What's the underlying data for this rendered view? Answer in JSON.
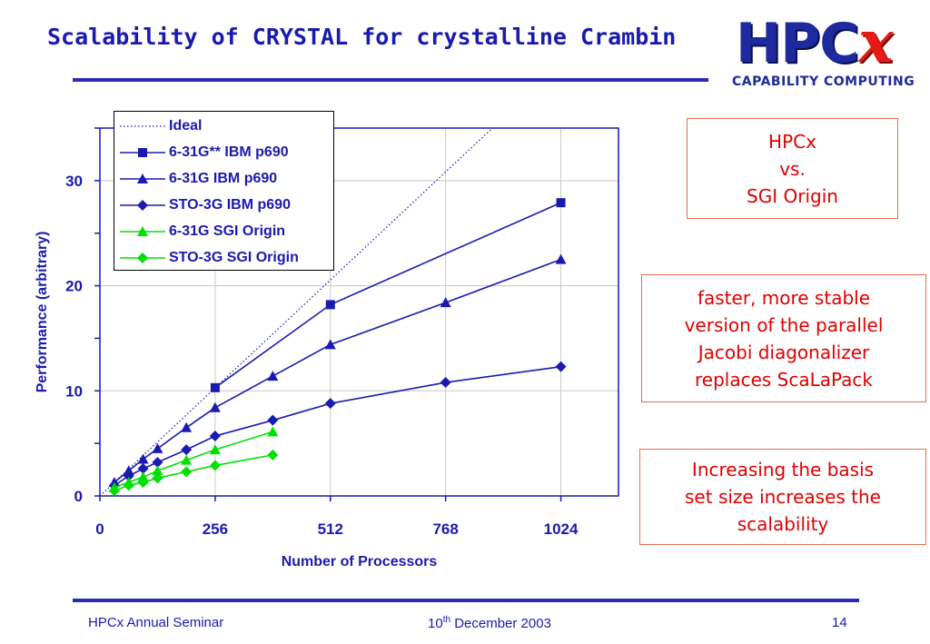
{
  "slide": {
    "title": "Scalability of CRYSTAL for crystalline Crambin",
    "logo": {
      "main": "HPC",
      "x": "x",
      "subtitle": "CAPABILITY COMPUTING"
    },
    "callouts": [
      {
        "lines": [
          "HPCx",
          "vs.",
          "SGI Origin"
        ]
      },
      {
        "lines": [
          "faster, more stable",
          "version of the parallel",
          "Jacobi diagonalizer",
          "replaces ScaLaPack"
        ]
      },
      {
        "lines": [
          "Increasing the basis",
          "set size increases the",
          "scalability"
        ]
      }
    ],
    "footer": {
      "left": "HPCx Annual Seminar",
      "date_day": "10",
      "date_suffix": "th",
      "date_rest": " December 2003",
      "page": "14"
    }
  },
  "colors": {
    "blue": "#1a1ab0",
    "green": "#00e000",
    "accent_red": "#e00000"
  },
  "chart_data": {
    "type": "line",
    "xlabel": "Number of Processors",
    "ylabel": "Performance (arbitrary)",
    "xlim": [
      0,
      1152
    ],
    "ylim": [
      0,
      35
    ],
    "xticks": [
      0,
      256,
      512,
      768,
      1024
    ],
    "yticks": [
      0,
      10,
      20,
      30
    ],
    "grid": true,
    "legend_position": "top-left",
    "series": [
      {
        "name": "Ideal",
        "style": "dotted",
        "marker": "none",
        "color": "#1a1ab0",
        "x": [
          0,
          872
        ],
        "y": [
          0,
          35
        ]
      },
      {
        "name": "6-31G** IBM p690",
        "style": "solid",
        "marker": "square",
        "color": "#1a1ab0",
        "x": [
          256,
          512,
          1024
        ],
        "y": [
          10.3,
          18.2,
          27.9
        ]
      },
      {
        "name": "6-31G IBM p690",
        "style": "solid",
        "marker": "triangle",
        "color": "#1a1ab0",
        "x": [
          32,
          64,
          96,
          128,
          192,
          256,
          384,
          512,
          768,
          1024
        ],
        "y": [
          1.3,
          2.4,
          3.5,
          4.5,
          6.5,
          8.4,
          11.4,
          14.4,
          18.4,
          22.5
        ]
      },
      {
        "name": "STO-3G IBM p690",
        "style": "solid",
        "marker": "diamond",
        "color": "#1a1ab0",
        "x": [
          32,
          64,
          96,
          128,
          192,
          256,
          384,
          512,
          768,
          1024
        ],
        "y": [
          1.0,
          1.9,
          2.6,
          3.2,
          4.4,
          5.7,
          7.2,
          8.8,
          10.8,
          12.3
        ]
      },
      {
        "name": "6-31G SGI Origin",
        "style": "solid",
        "marker": "triangle",
        "color": "#00e000",
        "x": [
          32,
          64,
          96,
          128,
          192,
          256,
          384
        ],
        "y": [
          0.8,
          1.3,
          1.8,
          2.4,
          3.4,
          4.4,
          6.1
        ]
      },
      {
        "name": "STO-3G SGI Origin",
        "style": "solid",
        "marker": "diamond",
        "color": "#00e000",
        "x": [
          32,
          64,
          96,
          128,
          192,
          256,
          384
        ],
        "y": [
          0.5,
          1.0,
          1.3,
          1.7,
          2.3,
          2.9,
          3.9
        ]
      }
    ]
  }
}
